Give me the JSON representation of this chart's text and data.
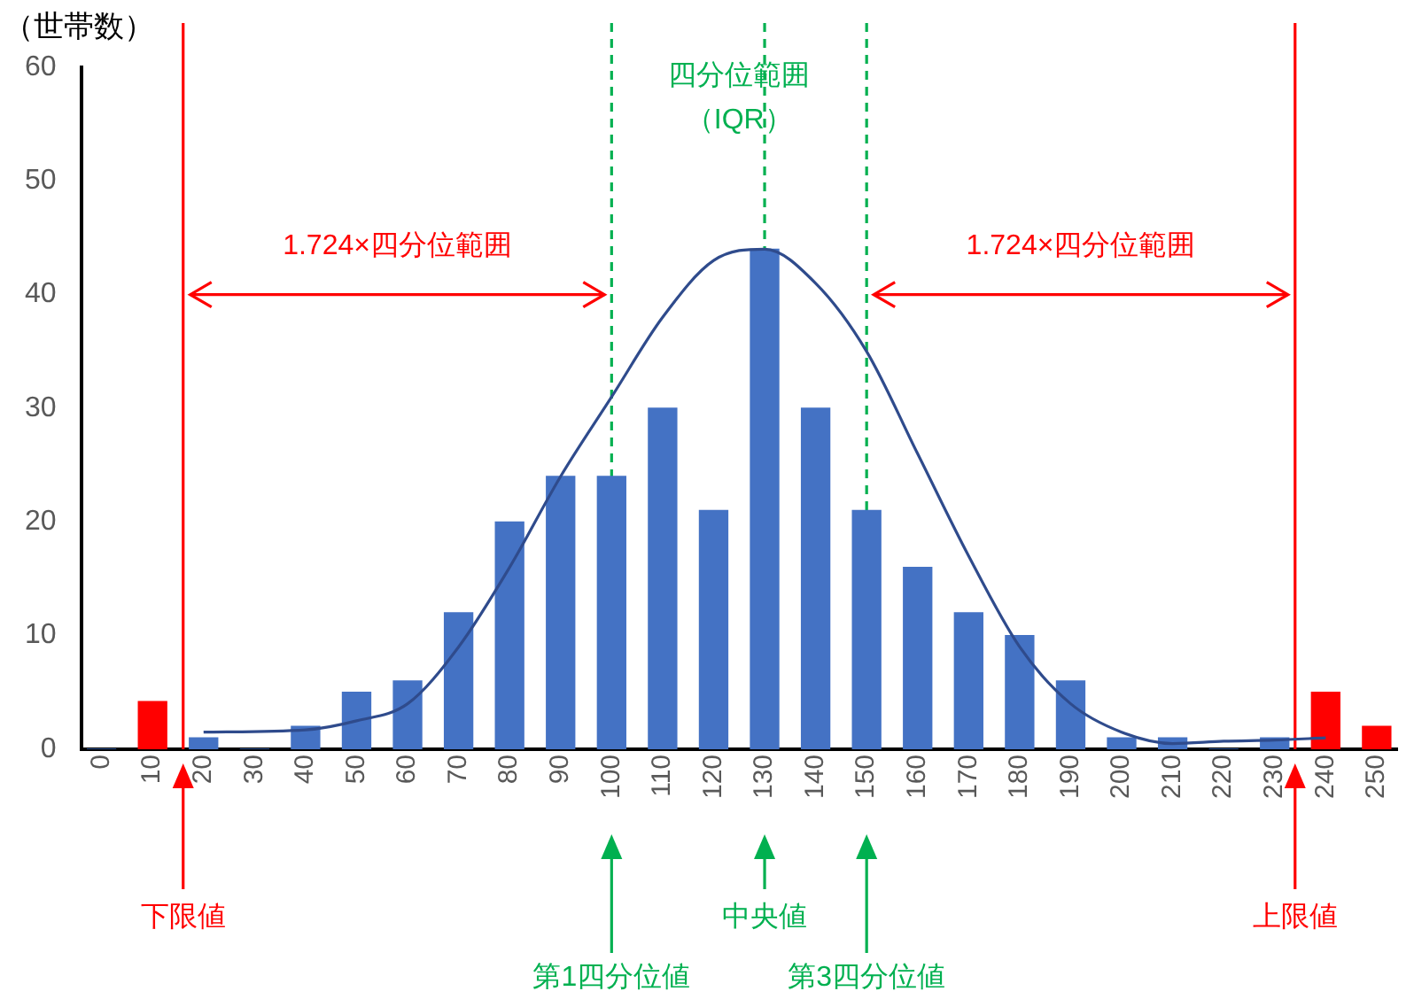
{
  "chart_data": {
    "type": "bar",
    "ylabel": "（世帯数）",
    "x": [
      0,
      10,
      20,
      30,
      40,
      50,
      60,
      70,
      80,
      90,
      100,
      110,
      120,
      130,
      140,
      150,
      160,
      170,
      180,
      190,
      200,
      210,
      220,
      230,
      240,
      250
    ],
    "xlim": [
      -4,
      254
    ],
    "xticks": [
      0,
      10,
      20,
      30,
      40,
      50,
      60,
      70,
      80,
      90,
      100,
      110,
      120,
      130,
      140,
      150,
      160,
      170,
      180,
      190,
      200,
      210,
      220,
      230,
      240,
      250
    ],
    "ylim": [
      0,
      60
    ],
    "yticks": [
      0,
      10,
      20,
      30,
      40,
      50,
      60
    ],
    "grid": false,
    "legend": false,
    "series": [
      {
        "colors": [
          "#4472c4",
          "#ff0000",
          "#4472c4",
          "#4472c4",
          "#4472c4",
          "#4472c4",
          "#4472c4",
          "#4472c4",
          "#4472c4",
          "#4472c4",
          "#4472c4",
          "#4472c4",
          "#4472c4",
          "#4472c4",
          "#4472c4",
          "#4472c4",
          "#4472c4",
          "#4472c4",
          "#4472c4",
          "#4472c4",
          "#4472c4",
          "#4472c4",
          "#4472c4",
          "#4472c4",
          "#ff0000",
          "#ff0000"
        ],
        "values": [
          0,
          4.2,
          1,
          0,
          2,
          5,
          6,
          12,
          20,
          24,
          24,
          30,
          21,
          44,
          30,
          21,
          16,
          12,
          10,
          6,
          1,
          1,
          0,
          1,
          5,
          2
        ]
      },
      {
        "type": "line",
        "color": "#2f4b8c",
        "marker": "none",
        "x": [
          20,
          40,
          50,
          60,
          70,
          80,
          90,
          100,
          110,
          120,
          130,
          140,
          150,
          160,
          170,
          180,
          190,
          200,
          210,
          220,
          230,
          240
        ],
        "values": [
          1.5,
          1.7,
          2.5,
          4,
          9,
          16,
          24,
          31,
          38,
          43,
          44,
          41,
          35,
          26,
          17,
          9,
          4,
          1.5,
          0.5,
          0.7,
          0.8,
          1
        ]
      }
    ],
    "ref_lines": [
      {
        "axis": "x",
        "value": 16,
        "label": "下限値",
        "color": "#ff0000",
        "line_style": "solid"
      },
      {
        "axis": "x",
        "value": 100,
        "label": "第1四分位値",
        "color": "#00b050",
        "line_style": "dashed"
      },
      {
        "axis": "x",
        "value": 130,
        "label": "中央値",
        "color": "#00b050",
        "line_style": "dashed"
      },
      {
        "axis": "x",
        "value": 150,
        "label": "第3四分位値",
        "color": "#00b050",
        "line_style": "dashed"
      },
      {
        "axis": "x",
        "value": 234,
        "label": "上限値",
        "color": "#ff0000",
        "line_style": "solid"
      }
    ],
    "annotations": [
      "1.724×四分位範囲",
      "四分位範囲（IQR）",
      "1.724×四分位範囲"
    ]
  }
}
